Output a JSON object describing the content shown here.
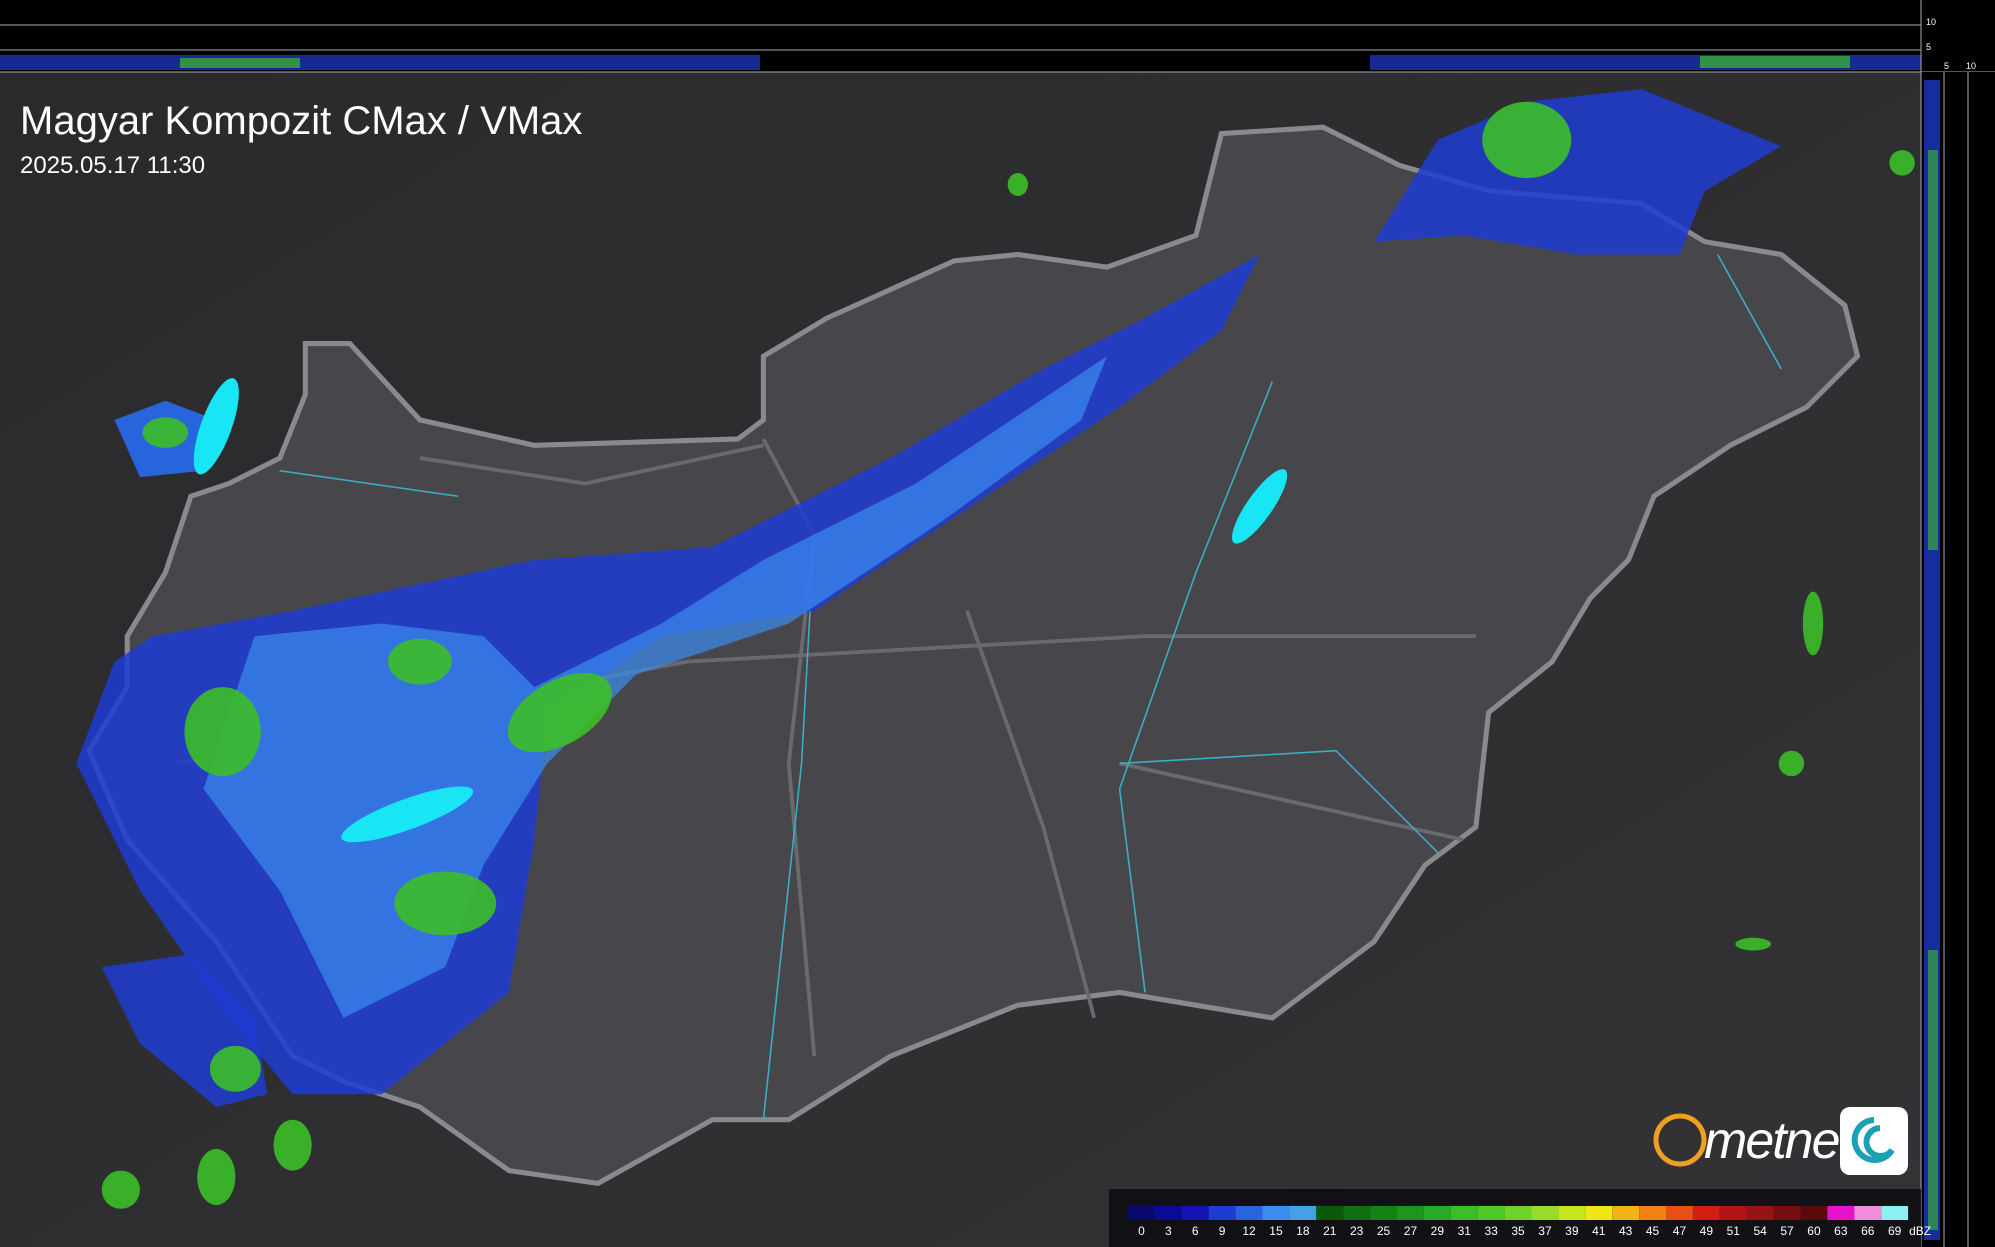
{
  "header": {
    "title": "Magyar Kompozit CMax / VMax",
    "timestamp": "2025.05.17 11:30"
  },
  "top_panel": {
    "labels": [
      "10",
      "5",
      "5",
      "10"
    ]
  },
  "logo": {
    "text": "metnet"
  },
  "legend": {
    "unit": "dBZ",
    "values": [
      0,
      3,
      6,
      9,
      12,
      15,
      18,
      21,
      23,
      25,
      27,
      29,
      31,
      33,
      35,
      37,
      39,
      41,
      43,
      45,
      47,
      49,
      51,
      54,
      57,
      60,
      63,
      66,
      69
    ],
    "colors": [
      "#0a0a6e",
      "#0a0a96",
      "#1414b4",
      "#1e3cd2",
      "#2864dc",
      "#3c8cf0",
      "#46a0e6",
      "#0a5a0a",
      "#0f6e0f",
      "#148214",
      "#1e961e",
      "#28aa28",
      "#3cbe28",
      "#50c828",
      "#6ed228",
      "#96dc28",
      "#c8e61e",
      "#f0e614",
      "#f0b414",
      "#f08214",
      "#e65014",
      "#d21e14",
      "#b41414",
      "#961414",
      "#780f0f",
      "#5a0a0a",
      "#e614c8",
      "#f08cdc",
      "#8cf0f0"
    ]
  }
}
